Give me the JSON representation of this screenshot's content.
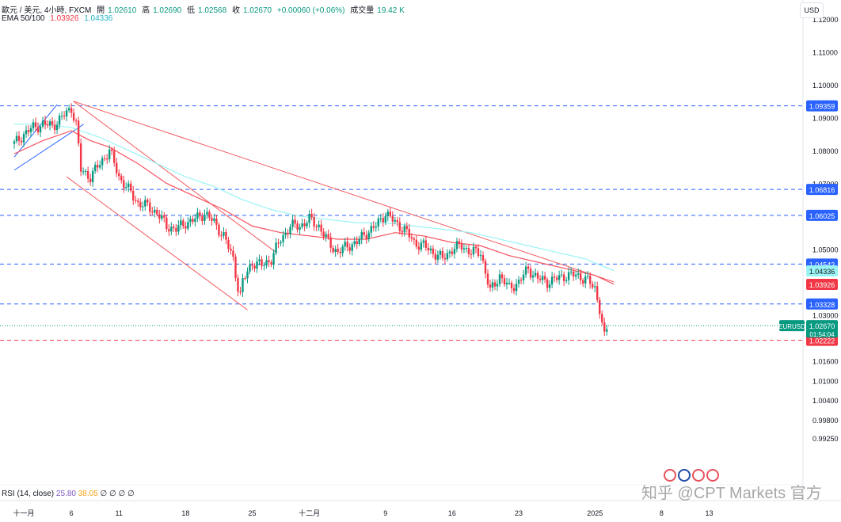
{
  "header": {
    "symbol": "歐元 / 美元, 4小時, FXCM",
    "open_label": "開",
    "open": "1.02610",
    "high_label": "高",
    "high": "1.02690",
    "low_label": "低",
    "low": "1.02568",
    "close_label": "收",
    "close": "1.02670",
    "change": "+0.00060 (+0.06%)",
    "volume_label": "成交量",
    "volume": "19.42 K",
    "ema_label": "EMA 50/100",
    "ema50": "1.03926",
    "ema100": "1.04336"
  },
  "currency_button": "USD",
  "rsi": {
    "label": "RSI (14, close)",
    "v1": "25.80",
    "v2": "38.05",
    "rest": "∅ ∅ ∅ ∅"
  },
  "watermark": "知乎 @CPT Markets 官方",
  "colors": {
    "up": "#089981",
    "down": "#f23645",
    "ema50": "#f7525f",
    "ema100": "#9af4f4",
    "trend": "#f25a5f",
    "channel_blue": "#2962ff",
    "level_blue": "#2962ff"
  },
  "chart_data": {
    "type": "candlestick",
    "symbol": "EURUSD",
    "timeframe": "4H",
    "y_axis": {
      "min": 0.9905,
      "max": 1.1258,
      "ticks": [
        "1.12000",
        "1.11000",
        "1.10000",
        "1.09000",
        "1.08000",
        "1.07000",
        "1.05000",
        "1.03000",
        "1.01600",
        "1.01000",
        "1.00400",
        "0.99800",
        "0.99250"
      ]
    },
    "x_axis": {
      "ticks": [
        {
          "label": "十一月",
          "day": 1
        },
        {
          "label": "6",
          "day": 6
        },
        {
          "label": "11",
          "day": 11
        },
        {
          "label": "18",
          "day": 18
        },
        {
          "label": "25",
          "day": 25
        },
        {
          "label": "十二月",
          "day": 31
        },
        {
          "label": "9",
          "day": 39
        },
        {
          "label": "16",
          "day": 46
        },
        {
          "label": "23",
          "day": 53
        },
        {
          "label": "2025",
          "day": 61
        },
        {
          "label": "8",
          "day": 68
        },
        {
          "label": "13",
          "day": 73
        }
      ]
    },
    "horizontal_levels": [
      {
        "value": 1.09359,
        "label": "1.09359",
        "color": "#2962ff"
      },
      {
        "value": 1.06816,
        "label": "1.06816",
        "color": "#2962ff"
      },
      {
        "value": 1.06025,
        "label": "1.06025",
        "color": "#2962ff"
      },
      {
        "value": 1.04542,
        "label": "1.04542",
        "color": "#2962ff"
      },
      {
        "value": 1.03328,
        "label": "1.03328",
        "color": "#2962ff"
      },
      {
        "value": 1.02222,
        "label": "1.02222",
        "color": "#f23645"
      }
    ],
    "price_tags": [
      {
        "value": 1.04336,
        "label": "1.04336",
        "bg": "#9af4f4",
        "fg": "#131722"
      },
      {
        "value": 1.03926,
        "label": "1.03926",
        "bg": "#f23645",
        "fg": "#ffffff"
      },
      {
        "value": 1.0267,
        "label": "1.02670",
        "sub": "01:54:04",
        "bg": "#089981",
        "fg": "#ffffff",
        "name": "EURUSD"
      }
    ],
    "close_path": [
      [
        0,
        1.082
      ],
      [
        1,
        1.085
      ],
      [
        2,
        1.087
      ],
      [
        3,
        1.088
      ],
      [
        4,
        1.0875
      ],
      [
        5,
        1.09
      ],
      [
        6,
        1.093
      ],
      [
        6.5,
        1.088
      ],
      [
        7,
        1.074
      ],
      [
        8,
        1.072
      ],
      [
        9,
        1.076
      ],
      [
        10,
        1.08
      ],
      [
        11,
        1.072
      ],
      [
        12,
        1.068
      ],
      [
        13,
        1.064
      ],
      [
        14,
        1.063
      ],
      [
        15,
        1.061
      ],
      [
        16,
        1.057
      ],
      [
        17,
        1.056
      ],
      [
        18,
        1.058
      ],
      [
        19,
        1.059
      ],
      [
        20,
        1.061
      ],
      [
        21,
        1.058
      ],
      [
        22,
        1.054
      ],
      [
        23,
        1.047
      ],
      [
        23.7,
        1.035
      ],
      [
        24,
        1.04
      ],
      [
        25,
        1.046
      ],
      [
        26,
        1.045
      ],
      [
        27,
        1.047
      ],
      [
        28,
        1.053
      ],
      [
        29,
        1.057
      ],
      [
        30,
        1.057
      ],
      [
        31,
        1.059
      ],
      [
        32,
        1.057
      ],
      [
        33,
        1.052
      ],
      [
        34,
        1.049
      ],
      [
        35,
        1.051
      ],
      [
        36,
        1.052
      ],
      [
        37,
        1.055
      ],
      [
        38,
        1.057
      ],
      [
        39,
        1.061
      ],
      [
        40,
        1.058
      ],
      [
        41,
        1.056
      ],
      [
        42,
        1.052
      ],
      [
        43,
        1.051
      ],
      [
        44,
        1.049
      ],
      [
        45,
        1.047
      ],
      [
        46,
        1.05
      ],
      [
        47,
        1.051
      ],
      [
        48,
        1.049
      ],
      [
        49,
        1.049
      ],
      [
        50,
        1.037
      ],
      [
        51,
        1.042
      ],
      [
        52,
        1.038
      ],
      [
        53,
        1.04
      ],
      [
        54,
        1.044
      ],
      [
        55,
        1.041
      ],
      [
        56,
        1.04
      ],
      [
        57,
        1.041
      ],
      [
        58,
        1.042
      ],
      [
        59,
        1.042
      ],
      [
        60,
        1.041
      ],
      [
        61,
        1.038
      ],
      [
        61.5,
        1.032
      ],
      [
        62,
        1.023
      ],
      [
        62.4,
        1.0267
      ]
    ],
    "ema50_path": [
      [
        0,
        1.079
      ],
      [
        3,
        1.083
      ],
      [
        6,
        1.086
      ],
      [
        8,
        1.083
      ],
      [
        10,
        1.081
      ],
      [
        13,
        1.076
      ],
      [
        16,
        1.07
      ],
      [
        19,
        1.066
      ],
      [
        22,
        1.062
      ],
      [
        25,
        1.057
      ],
      [
        28,
        1.055
      ],
      [
        31,
        1.054
      ],
      [
        34,
        1.053
      ],
      [
        37,
        1.053
      ],
      [
        40,
        1.055
      ],
      [
        43,
        1.054
      ],
      [
        46,
        1.052
      ],
      [
        49,
        1.051
      ],
      [
        52,
        1.048
      ],
      [
        55,
        1.046
      ],
      [
        58,
        1.044
      ],
      [
        61,
        1.042
      ],
      [
        63,
        1.0393
      ]
    ],
    "ema100_path": [
      [
        0,
        1.088
      ],
      [
        3,
        1.088
      ],
      [
        6,
        1.087
      ],
      [
        9,
        1.084
      ],
      [
        12,
        1.08
      ],
      [
        15,
        1.076
      ],
      [
        18,
        1.072
      ],
      [
        21,
        1.069
      ],
      [
        24,
        1.065
      ],
      [
        27,
        1.062
      ],
      [
        30,
        1.06
      ],
      [
        33,
        1.059
      ],
      [
        36,
        1.058
      ],
      [
        39,
        1.058
      ],
      [
        42,
        1.057
      ],
      [
        45,
        1.056
      ],
      [
        48,
        1.055
      ],
      [
        51,
        1.053
      ],
      [
        54,
        1.051
      ],
      [
        57,
        1.049
      ],
      [
        60,
        1.047
      ],
      [
        63,
        1.0434
      ]
    ],
    "trend_lines": [
      {
        "from": [
          6.2,
          1.095
        ],
        "to": [
          63,
          1.04
        ],
        "color": "#f25a5f"
      },
      {
        "from": [
          6.2,
          1.095
        ],
        "to": [
          27.5,
          1.049
        ],
        "color": "#f25a5f"
      },
      {
        "from": [
          5.5,
          1.072
        ],
        "to": [
          24.5,
          1.0315
        ],
        "color": "#f25a5f"
      },
      {
        "from": [
          0,
          1.078
        ],
        "to": [
          4.5,
          1.094
        ],
        "color": "#2962ff"
      },
      {
        "from": [
          0,
          1.074
        ],
        "to": [
          7.3,
          1.088
        ],
        "color": "#2962ff"
      }
    ]
  }
}
